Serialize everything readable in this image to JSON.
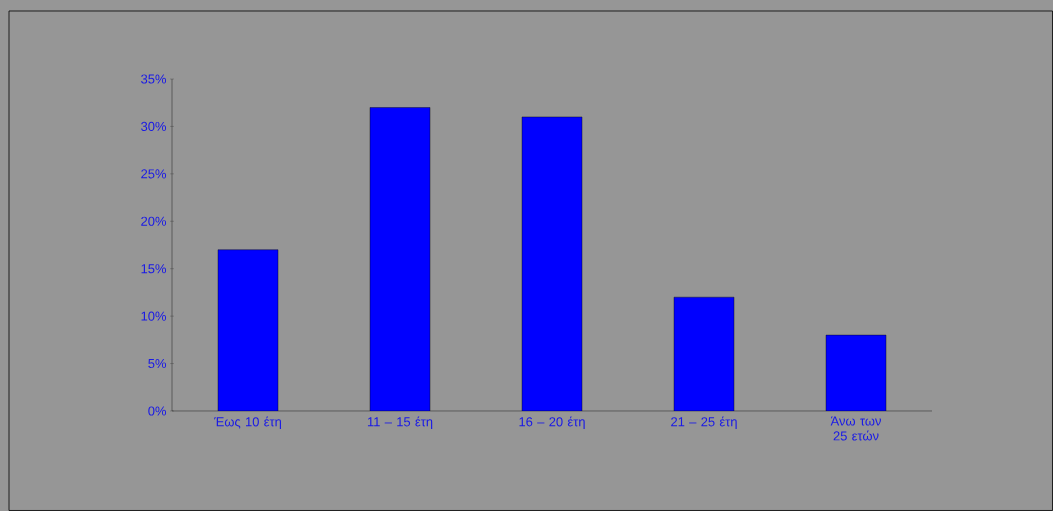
{
  "chart_data": {
    "type": "bar",
    "categories": [
      "Έως 10 έτη",
      "11 – 15 έτη",
      "16 – 20 έτη",
      "21 – 25 έτη",
      "Άνω των 25 ετών"
    ],
    "values": [
      17,
      32,
      31,
      12,
      8
    ],
    "color": "#0000ff",
    "ylim": [
      0,
      35
    ],
    "yticks": [
      {
        "value": 0,
        "label": "0%"
      },
      {
        "value": 5,
        "label": "5%"
      },
      {
        "value": 10,
        "label": "10%"
      },
      {
        "value": 15,
        "label": "15%"
      },
      {
        "value": 20,
        "label": "20%"
      },
      {
        "value": 25,
        "label": "25%"
      },
      {
        "value": 30,
        "label": "30%"
      },
      {
        "value": 35,
        "label": "35%"
      }
    ],
    "grid": false
  }
}
